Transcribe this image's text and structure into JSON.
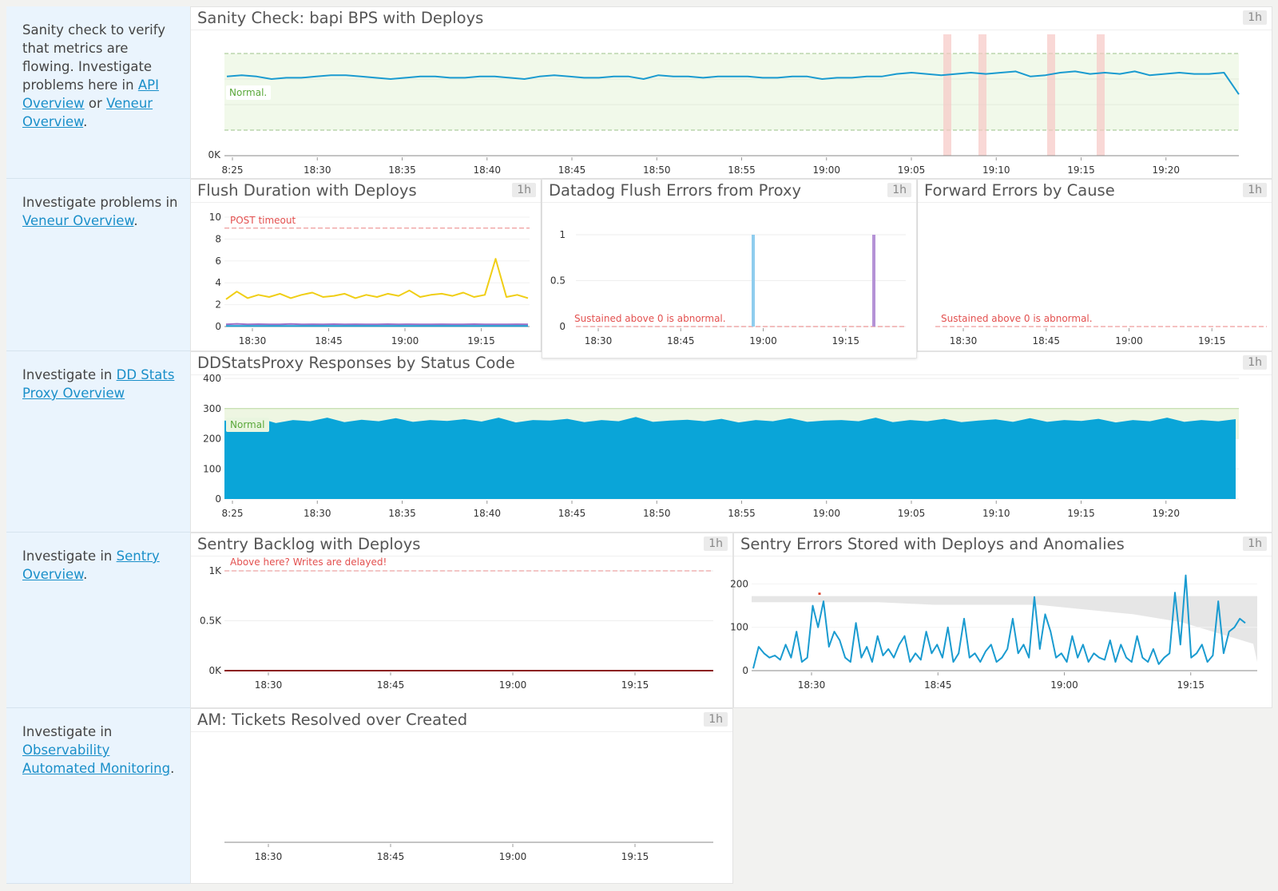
{
  "notes": {
    "n1": {
      "t1": "Sanity check to verify that metrics are flowing. Investigate problems here in ",
      "l1": "API Overview",
      "t2": " or ",
      "l2": "Veneur Overview",
      "t3": "."
    },
    "n2": {
      "t1": "Investigate problems in ",
      "l1": "Veneur Overview",
      "t2": "."
    },
    "n3": {
      "t1": "Investigate in ",
      "l1": "DD Stats Proxy Overview"
    },
    "n4": {
      "t1": "Investigate in ",
      "l1": "Sentry Overview",
      "t2": "."
    },
    "n5": {
      "t1": "Investigate in ",
      "l1": "Observability Automated Monitoring",
      "t2": "."
    }
  },
  "badge": "1h",
  "colors": {
    "blue": "#1a9bd0",
    "yellow": "#f0ce15",
    "purple": "#9b6fc6",
    "marker_red": "#e3504f",
    "normal_green": "#5aa83a",
    "fill_blue": "#0aa5d8"
  },
  "charts": {
    "sanity": {
      "title": "Sanity Check: bapi BPS with Deploys",
      "chart_data": {
        "type": "line",
        "x_ticks": [
          "8:25",
          "18:30",
          "18:35",
          "18:40",
          "18:45",
          "18:50",
          "18:55",
          "19:00",
          "19:05",
          "19:10",
          "19:15",
          "19:20"
        ],
        "y_ticks": [
          "0K"
        ],
        "normal_band_label": "Normal.",
        "deploy_markers": [
          "19:07",
          "19:09",
          "19:13",
          "19:16"
        ],
        "series": [
          {
            "values": [
              0.62,
              0.63,
              0.62,
              0.6,
              0.61,
              0.61,
              0.62,
              0.63,
              0.63,
              0.62,
              0.61,
              0.6,
              0.61,
              0.62,
              0.62,
              0.61,
              0.61,
              0.62,
              0.62,
              0.61,
              0.6,
              0.62,
              0.63,
              0.62,
              0.61,
              0.61,
              0.62,
              0.62,
              0.6,
              0.63,
              0.62,
              0.62,
              0.61,
              0.62,
              0.62,
              0.62,
              0.61,
              0.61,
              0.62,
              0.62,
              0.6,
              0.61,
              0.61,
              0.62,
              0.62,
              0.64,
              0.65,
              0.64,
              0.63,
              0.64,
              0.65,
              0.64,
              0.65,
              0.66,
              0.62,
              0.63,
              0.65,
              0.66,
              0.64,
              0.65,
              0.64,
              0.66,
              0.63,
              0.64,
              0.65,
              0.64,
              0.64,
              0.65,
              0.48
            ]
          }
        ]
      }
    },
    "flush": {
      "title": "Flush Duration with Deploys",
      "chart_data": {
        "type": "line",
        "x_ticks": [
          "18:30",
          "18:45",
          "19:00",
          "19:15"
        ],
        "y_ticks": [
          "0",
          "2",
          "4",
          "6",
          "8",
          "10"
        ],
        "ylim": [
          0,
          10
        ],
        "marker_label": "POST timeout",
        "marker_value": 9,
        "series": [
          {
            "values": [
              2.5,
              3.2,
              2.6,
              2.9,
              2.7,
              3.0,
              2.6,
              2.9,
              3.1,
              2.7,
              2.8,
              3.0,
              2.6,
              2.9,
              2.7,
              3.0,
              2.8,
              3.3,
              2.7,
              2.9,
              3.0,
              2.8,
              3.1,
              2.7,
              2.9,
              6.2,
              2.7,
              2.9,
              2.6
            ]
          },
          {
            "values": [
              0.2,
              0.25,
              0.2,
              0.22,
              0.2,
              0.2,
              0.23,
              0.2,
              0.21,
              0.2,
              0.22,
              0.2,
              0.21,
              0.2,
              0.2,
              0.22,
              0.2,
              0.21,
              0.2,
              0.2,
              0.21,
              0.2,
              0.2,
              0.22,
              0.2,
              0.2,
              0.2,
              0.21,
              0.2
            ]
          },
          {
            "values": [
              0.05,
              0.05,
              0.05,
              0.05,
              0.05,
              0.05,
              0.05,
              0.05,
              0.05,
              0.05,
              0.05,
              0.05,
              0.05,
              0.05,
              0.05,
              0.05,
              0.05,
              0.05,
              0.05,
              0.05,
              0.05,
              0.05,
              0.05,
              0.05,
              0.05,
              0.05,
              0.05,
              0.05,
              0.05
            ]
          }
        ]
      }
    },
    "ddflush": {
      "title": "Datadog Flush Errors from Proxy",
      "chart_data": {
        "type": "bar",
        "x_ticks": [
          "18:30",
          "18:45",
          "19:00",
          "19:15"
        ],
        "y_ticks": [
          "0",
          "0.5",
          "1"
        ],
        "ylim": [
          0,
          1
        ],
        "marker_label": "Sustained above 0 is abnormal.",
        "marker_value": 0,
        "bars": [
          {
            "x": "18:59",
            "value": 1
          },
          {
            "x": "19:21",
            "value": 1
          }
        ]
      }
    },
    "forward": {
      "title": "Forward Errors by Cause",
      "chart_data": {
        "type": "line",
        "x_ticks": [
          "18:30",
          "18:45",
          "19:00",
          "19:15"
        ],
        "marker_label": "Sustained above 0 is abnormal.",
        "marker_value": 0,
        "series": []
      }
    },
    "ddstats": {
      "title": "DDStatsProxy Responses by Status Code",
      "chart_data": {
        "type": "area",
        "x_ticks": [
          "8:25",
          "18:30",
          "18:35",
          "18:40",
          "18:45",
          "18:50",
          "18:55",
          "19:00",
          "19:05",
          "19:10",
          "19:15",
          "19:20"
        ],
        "y_ticks": [
          "0",
          "100",
          "200",
          "300",
          "400"
        ],
        "ylim": [
          0,
          400
        ],
        "normal_band_label": "Normal",
        "normal_band": [
          200,
          300
        ],
        "series": [
          {
            "values": [
              260,
              255,
              268,
              252,
              262,
              258,
              270,
              255,
              263,
              258,
              268,
              256,
              262,
              259,
              265,
              257,
              270,
              254,
              262,
              260,
              266,
              255,
              262,
              258,
              272,
              256,
              260,
              263,
              258,
              266,
              254,
              262,
              258,
              268,
              256,
              260,
              262,
              258,
              270,
              255,
              262,
              258,
              266,
              255,
              260,
              264,
              256,
              268,
              256,
              262,
              259,
              266,
              254,
              262,
              258,
              270,
              256,
              262,
              258,
              265
            ]
          }
        ]
      }
    },
    "sentrybacklog": {
      "title": "Sentry Backlog with Deploys",
      "chart_data": {
        "type": "line",
        "x_ticks": [
          "18:30",
          "18:45",
          "19:00",
          "19:15"
        ],
        "y_ticks": [
          "0K",
          "0.5K",
          "1K"
        ],
        "ylim": [
          0,
          1000
        ],
        "marker_label": "Above here? Writes are delayed!",
        "marker_value": 1000,
        "series": [
          {
            "values": [
              0,
              0,
              0,
              0,
              0,
              0,
              0,
              0,
              0,
              0
            ]
          }
        ]
      }
    },
    "sentryerrors": {
      "title": "Sentry Errors Stored with Deploys and Anomalies",
      "chart_data": {
        "type": "line",
        "x_ticks": [
          "18:30",
          "18:45",
          "19:00",
          "19:15"
        ],
        "y_ticks": [
          "0",
          "100",
          "200"
        ],
        "ylim": [
          0,
          280
        ],
        "series": [
          {
            "values": [
              5,
              55,
              40,
              30,
              35,
              25,
              60,
              30,
              90,
              20,
              30,
              150,
              100,
              160,
              55,
              90,
              70,
              30,
              20,
              110,
              30,
              55,
              20,
              80,
              35,
              50,
              30,
              60,
              80,
              20,
              40,
              25,
              90,
              40,
              60,
              30,
              100,
              20,
              40,
              120,
              30,
              40,
              20,
              45,
              60,
              20,
              30,
              50,
              120,
              40,
              60,
              30,
              170,
              50,
              130,
              90,
              30,
              40,
              20,
              80,
              30,
              60,
              20,
              40,
              30,
              25,
              70,
              20,
              60,
              30,
              20,
              80,
              30,
              20,
              50,
              15,
              30,
              40,
              180,
              60,
              220,
              30,
              40,
              60,
              20,
              35,
              160,
              40,
              90,
              100,
              120,
              110
            ]
          }
        ]
      }
    },
    "tickets": {
      "title": "AM: Tickets Resolved over Created",
      "chart_data": {
        "type": "line",
        "x_ticks": [
          "18:30",
          "18:45",
          "19:00",
          "19:15"
        ],
        "series": []
      }
    }
  }
}
